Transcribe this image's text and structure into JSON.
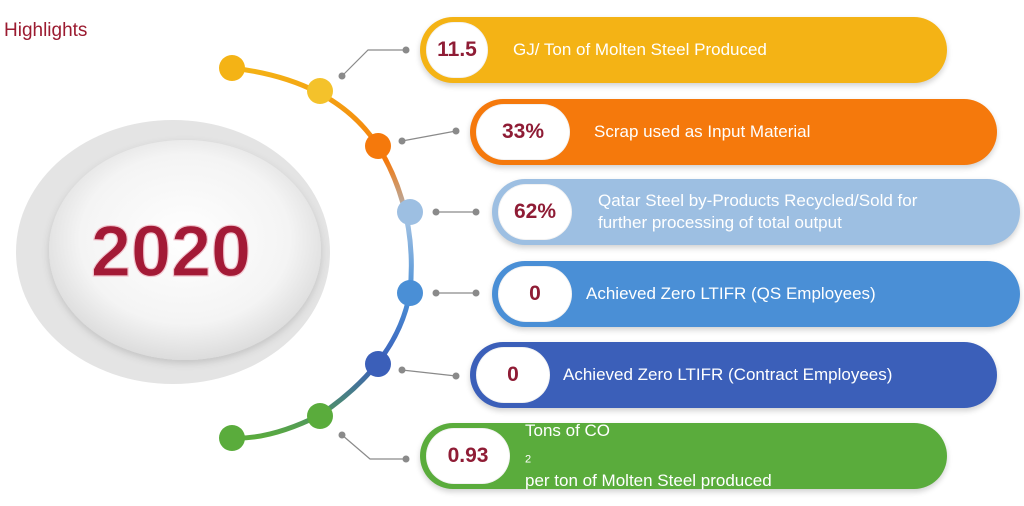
{
  "heading": "Highlights",
  "year": "2020",
  "colors": {
    "heading": "#9b1b30",
    "year": "#a31a36",
    "value_text": "#8f1c35",
    "connector": "#8a8a8a"
  },
  "items": [
    {
      "value": "11.5",
      "description": "GJ/ Ton of Molten Steel Produced",
      "color": "#f4b315"
    },
    {
      "value": "33%",
      "description": "Scrap used as Input Material",
      "color": "#f5790c"
    },
    {
      "value": "62%",
      "description_line1": "Qatar Steel by-Products Recycled/Sold for",
      "description_line2": "further processing of total output",
      "color": "#9dbfe2"
    },
    {
      "value": "0",
      "description": "Achieved Zero LTIFR (QS Employees)",
      "color": "#4a8fd6"
    },
    {
      "value": "0",
      "description": "Achieved Zero LTIFR (Contract Employees)",
      "color": "#3b5fb9"
    },
    {
      "value": "0.93",
      "description_pre": "Tons of CO",
      "description_sub": "2",
      "description_post": " per ton of Molten Steel produced",
      "color": "#5aac3c"
    }
  ]
}
